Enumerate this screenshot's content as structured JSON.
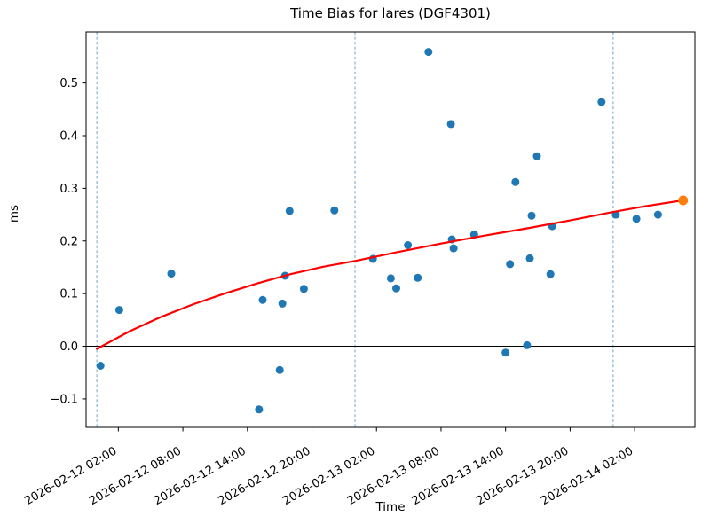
{
  "chart_data": {
    "type": "scatter",
    "title": "Time Bias for lares (DGF4301)",
    "xlabel": "Time",
    "ylabel": "ms",
    "xlim": [
      "2026-02-11 23:00",
      "2026-02-14 07:36"
    ],
    "ylim": [
      -0.154,
      0.597
    ],
    "grid": "off",
    "legend": "none",
    "x_ticks": [
      "2026-02-12 02:00",
      "2026-02-12 08:00",
      "2026-02-12 14:00",
      "2026-02-12 20:00",
      "2026-02-13 02:00",
      "2026-02-13 08:00",
      "2026-02-13 14:00",
      "2026-02-13 20:00",
      "2026-02-14 02:00"
    ],
    "y_ticks": [
      {
        "v": -0.1,
        "label": "−0.1"
      },
      {
        "v": 0.0,
        "label": "0.0"
      },
      {
        "v": 0.1,
        "label": "0.1"
      },
      {
        "v": 0.2,
        "label": "0.2"
      },
      {
        "v": 0.3,
        "label": "0.3"
      },
      {
        "v": 0.4,
        "label": "0.4"
      },
      {
        "v": 0.5,
        "label": "0.5"
      }
    ],
    "day_gridlines": [
      "2026-02-12 00:00",
      "2026-02-13 00:00",
      "2026-02-14 00:00"
    ],
    "zero_line": 0.0,
    "colors": {
      "scatter": "#1f77b4",
      "fit": "#ff0000",
      "endpoint": "#ff7f0e",
      "day_gridline": "#6fa3c7",
      "spine": "#000000"
    },
    "series": [
      {
        "name": "bias-observations",
        "type": "scatter",
        "color": "#1f77b4",
        "points": [
          [
            "2026-02-12 00:20",
            -0.037
          ],
          [
            "2026-02-12 02:05",
            0.069
          ],
          [
            "2026-02-12 06:55",
            0.138
          ],
          [
            "2026-02-12 15:05",
            -0.12
          ],
          [
            "2026-02-12 15:25",
            0.088
          ],
          [
            "2026-02-12 17:00",
            -0.045
          ],
          [
            "2026-02-12 17:15",
            0.081
          ],
          [
            "2026-02-12 17:30",
            0.134
          ],
          [
            "2026-02-12 17:55",
            0.257
          ],
          [
            "2026-02-12 19:15",
            0.109
          ],
          [
            "2026-02-12 22:05",
            0.258
          ],
          [
            "2026-02-13 01:40",
            0.166
          ],
          [
            "2026-02-13 03:20",
            0.129
          ],
          [
            "2026-02-13 03:50",
            0.11
          ],
          [
            "2026-02-13 04:55",
            0.192
          ],
          [
            "2026-02-13 05:50",
            0.13
          ],
          [
            "2026-02-13 06:50",
            0.559
          ],
          [
            "2026-02-13 08:55",
            0.422
          ],
          [
            "2026-02-13 09:00",
            0.203
          ],
          [
            "2026-02-13 09:10",
            0.186
          ],
          [
            "2026-02-13 11:05",
            0.212
          ],
          [
            "2026-02-13 14:00",
            -0.012
          ],
          [
            "2026-02-13 14:25",
            0.156
          ],
          [
            "2026-02-13 14:55",
            0.312
          ],
          [
            "2026-02-13 16:00",
            0.002
          ],
          [
            "2026-02-13 16:15",
            0.167
          ],
          [
            "2026-02-13 16:25",
            0.248
          ],
          [
            "2026-02-13 16:55",
            0.361
          ],
          [
            "2026-02-13 18:10",
            0.137
          ],
          [
            "2026-02-13 18:20",
            0.228
          ],
          [
            "2026-02-13 22:55",
            0.464
          ],
          [
            "2026-02-14 00:15",
            0.25
          ],
          [
            "2026-02-14 02:10",
            0.242
          ],
          [
            "2026-02-14 04:10",
            0.25
          ]
        ]
      },
      {
        "name": "fit-curve",
        "type": "line",
        "color": "#ff0000",
        "points": [
          [
            "2026-02-12 00:00",
            -0.005
          ],
          [
            "2026-02-12 03:00",
            0.028
          ],
          [
            "2026-02-12 06:00",
            0.056
          ],
          [
            "2026-02-12 09:00",
            0.08
          ],
          [
            "2026-02-12 12:00",
            0.101
          ],
          [
            "2026-02-12 15:00",
            0.12
          ],
          [
            "2026-02-12 18:00",
            0.137
          ],
          [
            "2026-02-12 21:00",
            0.151
          ],
          [
            "2026-02-13 00:00",
            0.162
          ],
          [
            "2026-02-13 04:00",
            0.179
          ],
          [
            "2026-02-13 08:00",
            0.195
          ],
          [
            "2026-02-13 12:00",
            0.21
          ],
          [
            "2026-02-13 16:00",
            0.224
          ],
          [
            "2026-02-13 20:00",
            0.239
          ],
          [
            "2026-02-14 00:00",
            0.255
          ],
          [
            "2026-02-14 03:00",
            0.266
          ],
          [
            "2026-02-14 06:30",
            0.277
          ]
        ]
      },
      {
        "name": "fit-endpoint",
        "type": "scatter",
        "color": "#ff7f0e",
        "points": [
          [
            "2026-02-14 06:30",
            0.277
          ]
        ]
      }
    ]
  }
}
